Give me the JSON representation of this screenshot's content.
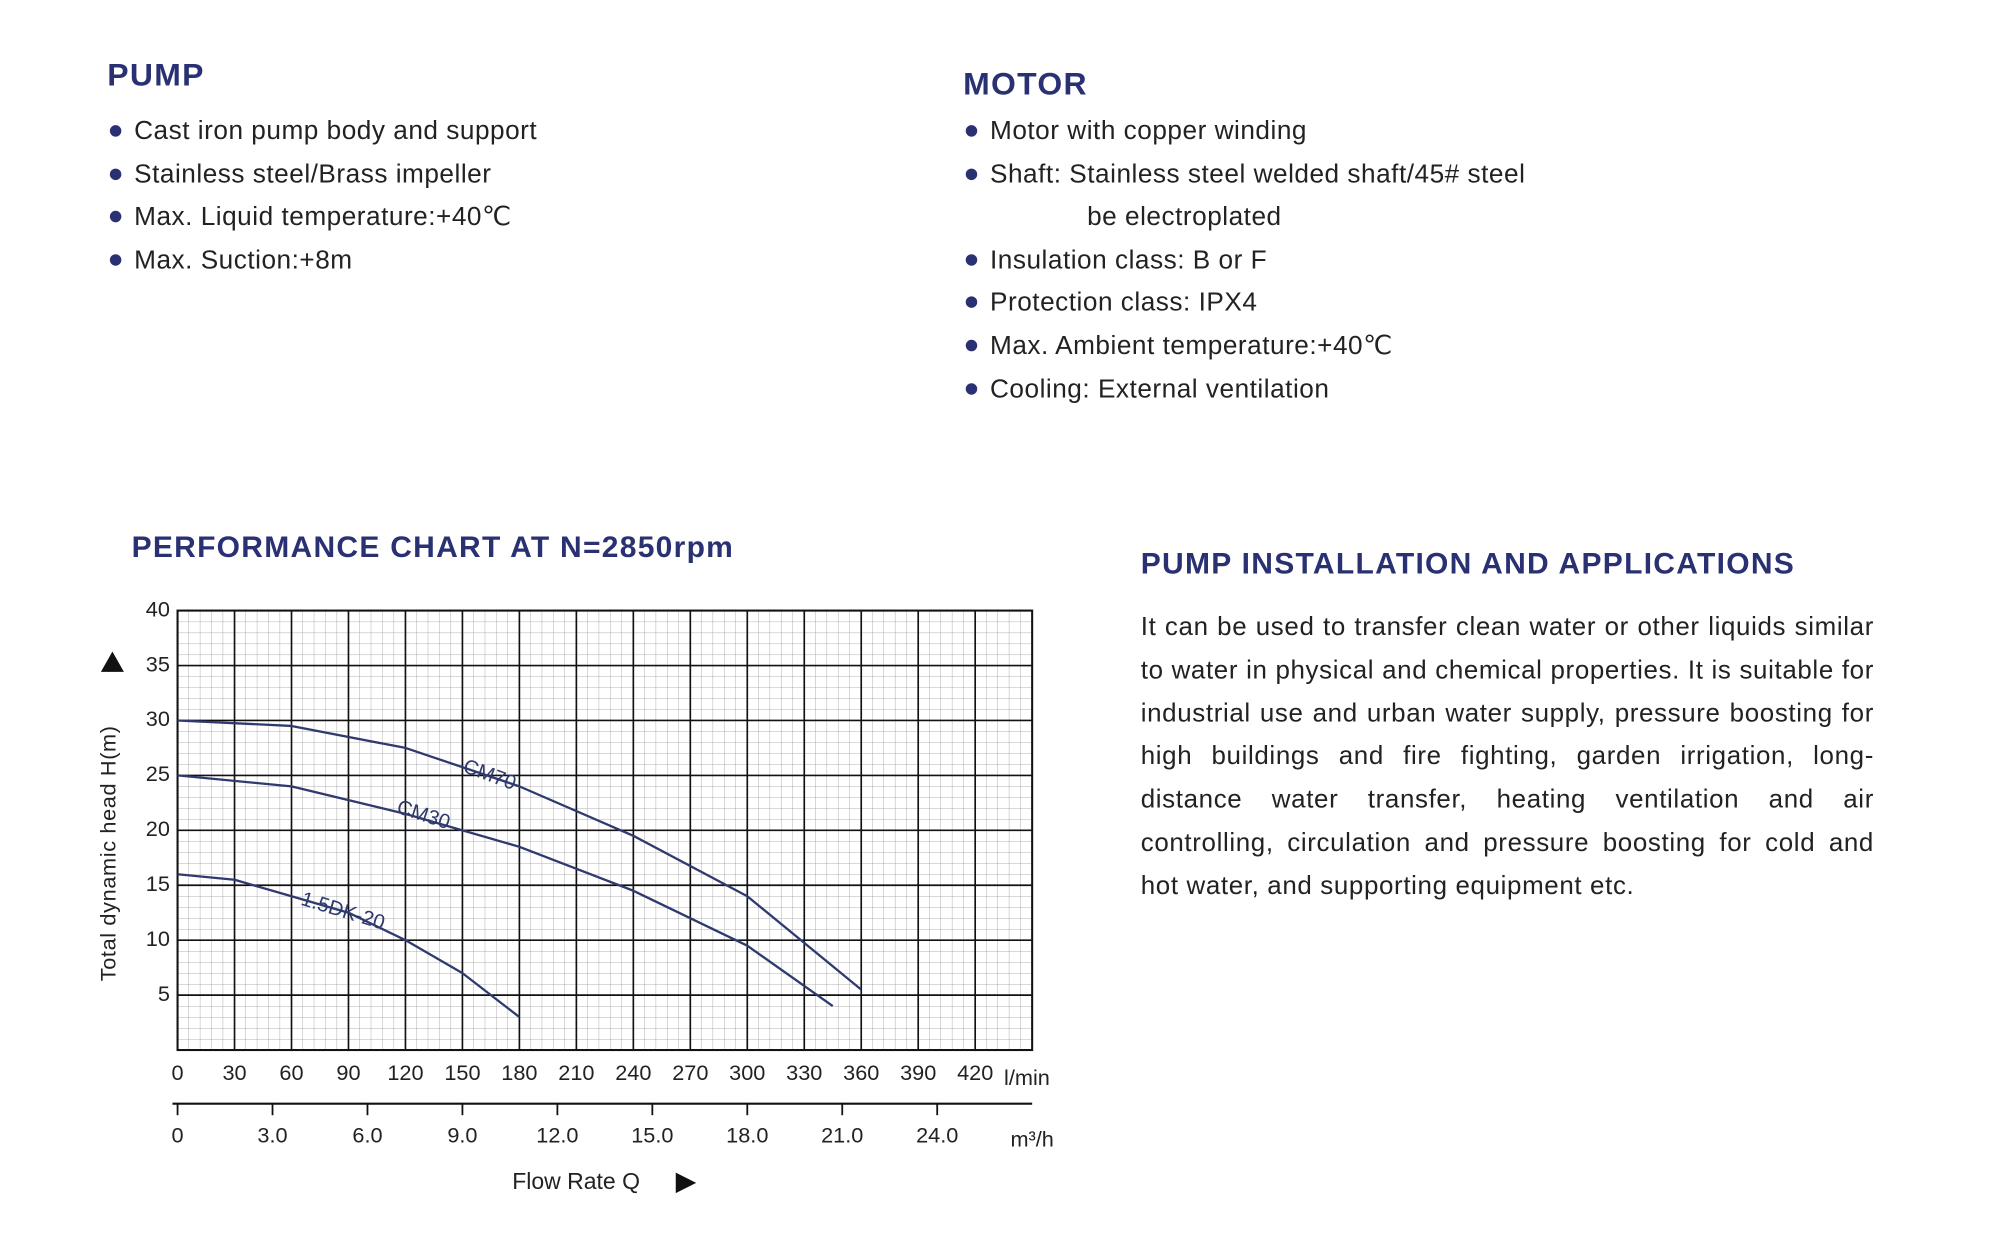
{
  "pump": {
    "title": "PUMP",
    "items": [
      "Cast iron pump body and support",
      "Stainless steel/Brass impeller",
      "Max. Liquid temperature:+40℃",
      "Max. Suction:+8m"
    ]
  },
  "motor": {
    "title": "MOTOR",
    "items": [
      "Motor with copper winding",
      [
        "Shaft: Stainless steel welded shaft/45# steel",
        "be electroplated"
      ],
      "Insulation class: B or F",
      "Protection class: IPX4",
      "Max. Ambient temperature:+40℃",
      "Cooling: External ventilation"
    ]
  },
  "chart_data": {
    "type": "line",
    "title": "PERFORMANCE CHART AT N=2850rpm",
    "y_label": "Total dynamic head H(m)",
    "x_label": "Flow Rate Q",
    "x_unit": "l/min",
    "x2_unit": "m³/h",
    "xlim": [
      0,
      450
    ],
    "xticks": [
      0,
      30,
      60,
      90,
      120,
      150,
      180,
      210,
      240,
      270,
      300,
      330,
      360,
      390,
      420
    ],
    "ylim": [
      0,
      40
    ],
    "yticks": [
      5,
      10,
      15,
      20,
      25,
      30,
      35,
      40
    ],
    "x2lim": [
      0,
      27
    ],
    "x2ticks": [
      0,
      {
        "value": 3,
        "label": "3.0"
      },
      {
        "value": 6,
        "label": "6.0"
      },
      {
        "value": 9,
        "label": "9.0"
      },
      {
        "value": 12,
        "label": "12.0"
      },
      {
        "value": 15,
        "label": "15.0"
      },
      {
        "value": 18,
        "label": "18.0"
      },
      {
        "value": 21,
        "label": "21.0"
      },
      {
        "value": 24,
        "label": "24.0"
      }
    ],
    "grid": true,
    "series": [
      {
        "name": "CM70",
        "color": "#2f3a6e",
        "x": [
          0,
          60,
          120,
          180,
          240,
          300,
          360
        ],
        "values": [
          30,
          29.5,
          27.5,
          24,
          19.5,
          14,
          5.5
        ]
      },
      {
        "name": "CM30",
        "color": "#2f3a6e",
        "x": [
          0,
          60,
          120,
          180,
          240,
          300,
          345
        ],
        "values": [
          25,
          24,
          21.5,
          18.5,
          14.5,
          9.5,
          4
        ]
      },
      {
        "name": "1.5DK-20",
        "color": "#2f3a6e",
        "x": [
          0,
          30,
          60,
          90,
          120,
          150,
          180
        ],
        "values": [
          16,
          15.5,
          14,
          12.5,
          10,
          7,
          3
        ]
      }
    ]
  },
  "installation": {
    "title": "PUMP INSTALLATION AND APPLICATIONS",
    "text": "It can be used to transfer clean water or other liquids similar to water in physical and chemical properties. It is suitable for industrial use and urban water supply, pressure boosting for high buildings and fire fighting, garden irrigation, long-distance water transfer, heating ventilation and air controlling, circulation and pressure boosting for cold and hot water, and supporting equipment etc."
  }
}
